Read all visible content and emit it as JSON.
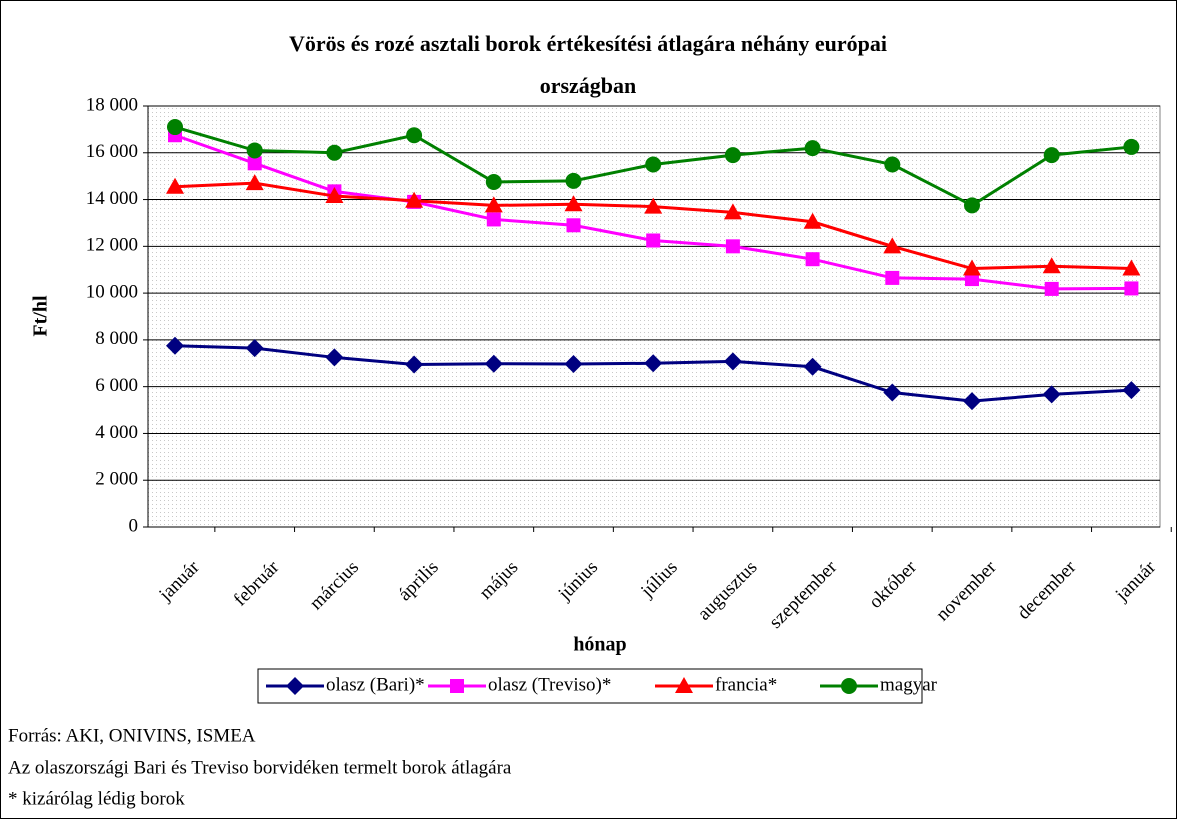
{
  "chart_data": {
    "type": "line",
    "title": "Vörös és rozé asztali borok értékesítési átlagára néhány európai",
    "title_line2": "országban",
    "x_label": "hónap",
    "y_label": "Ft/hl",
    "categories": [
      "január",
      "február",
      "március",
      "április",
      "május",
      "június",
      "július",
      "augusztus",
      "szeptember",
      "október",
      "november",
      "december",
      "január"
    ],
    "ylim": [
      0,
      18000
    ],
    "yticks": [
      0,
      {
        "value": 2000,
        "label": "2 000"
      },
      {
        "value": 4000,
        "label": "4 000"
      },
      {
        "value": 6000,
        "label": "6 000"
      },
      {
        "value": 8000,
        "label": "8 000"
      },
      {
        "value": 10000,
        "label": "10 000"
      },
      {
        "value": 12000,
        "label": "12 000"
      },
      {
        "value": 14000,
        "label": "14 000"
      },
      {
        "value": 16000,
        "label": "16 000"
      },
      {
        "value": 18000,
        "label": "18 000"
      }
    ],
    "grid": true,
    "series": [
      {
        "name": "olasz (Bari)*",
        "color": "#000080",
        "marker": "diamond",
        "values": [
          7750,
          7650,
          7250,
          6950,
          6980,
          6970,
          7000,
          7080,
          6850,
          5750,
          5380,
          5670,
          5850
        ]
      },
      {
        "name": "olasz (Treviso)*",
        "color": "#ff00ff",
        "marker": "square",
        "values": [
          16750,
          15550,
          14350,
          13900,
          13150,
          12900,
          12250,
          12000,
          11450,
          10650,
          10600,
          10180,
          10200
        ]
      },
      {
        "name": "francia*",
        "color": "#ff0000",
        "marker": "triangle",
        "values": [
          14550,
          14700,
          14150,
          13950,
          13750,
          13800,
          13700,
          13450,
          13050,
          12000,
          11050,
          11150,
          11050
        ]
      },
      {
        "name": "magyar",
        "color": "#008000",
        "marker": "circle",
        "values": [
          17100,
          16100,
          16000,
          16750,
          14750,
          14800,
          15500,
          15900,
          16200,
          15500,
          13750,
          15900,
          16250
        ]
      }
    ],
    "notes": [
      "Forrás: AKI, ONIVINS, ISMEA",
      "Az olaszországi Bari és Treviso borvidéken termelt borok átlagára",
      "* kizárólag lédig borok"
    ]
  }
}
